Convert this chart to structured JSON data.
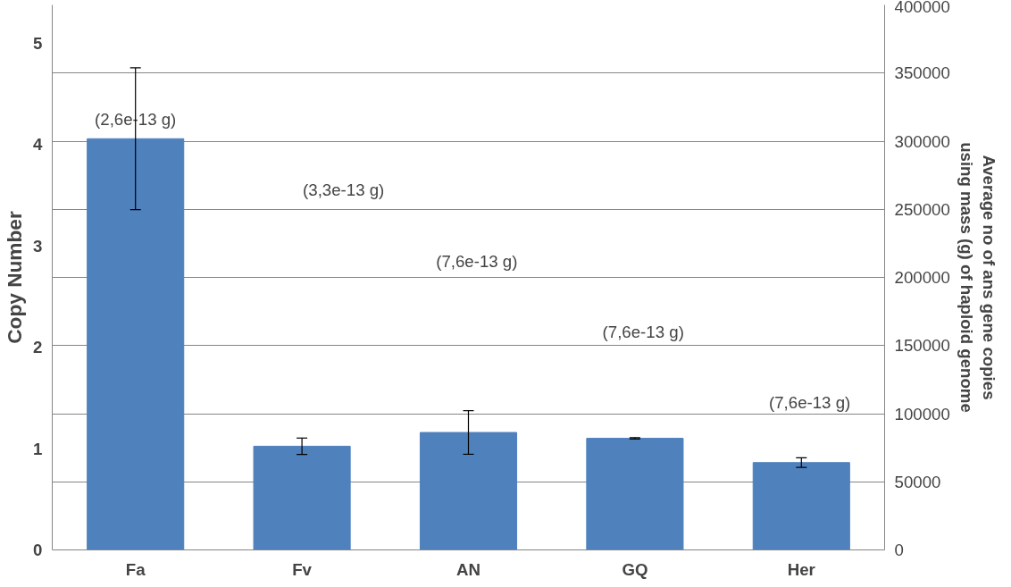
{
  "chart_data": {
    "type": "bar",
    "categories": [
      "Fa",
      "Fv",
      "AN",
      "GQ",
      "Her"
    ],
    "ylabel": "Copy Number",
    "y2label": "Average no of ans gene copies using mass (g) of haploid genome",
    "ylim": [
      0,
      5.38
    ],
    "yticks": [
      0,
      1,
      2,
      3,
      4,
      5
    ],
    "y2lim": [
      0,
      400000
    ],
    "y2ticks": [
      0,
      50000,
      100000,
      150000,
      200000,
      250000,
      300000,
      350000,
      400000
    ],
    "series": [
      {
        "color": "#4f81bd",
        "axis": "y2",
        "values": [
          301800,
          76100,
          86200,
          81900,
          64100
        ],
        "errors": [
          52000,
          6000,
          16000,
          500,
          3500
        ]
      }
    ],
    "annotations": [
      "(2,6e-13 g)",
      "(3,3e-13 g)",
      "(7,6e-13 g)",
      "(7,6e-13 g)",
      "(7,6e-13 g)"
    ],
    "grid": "y"
  }
}
